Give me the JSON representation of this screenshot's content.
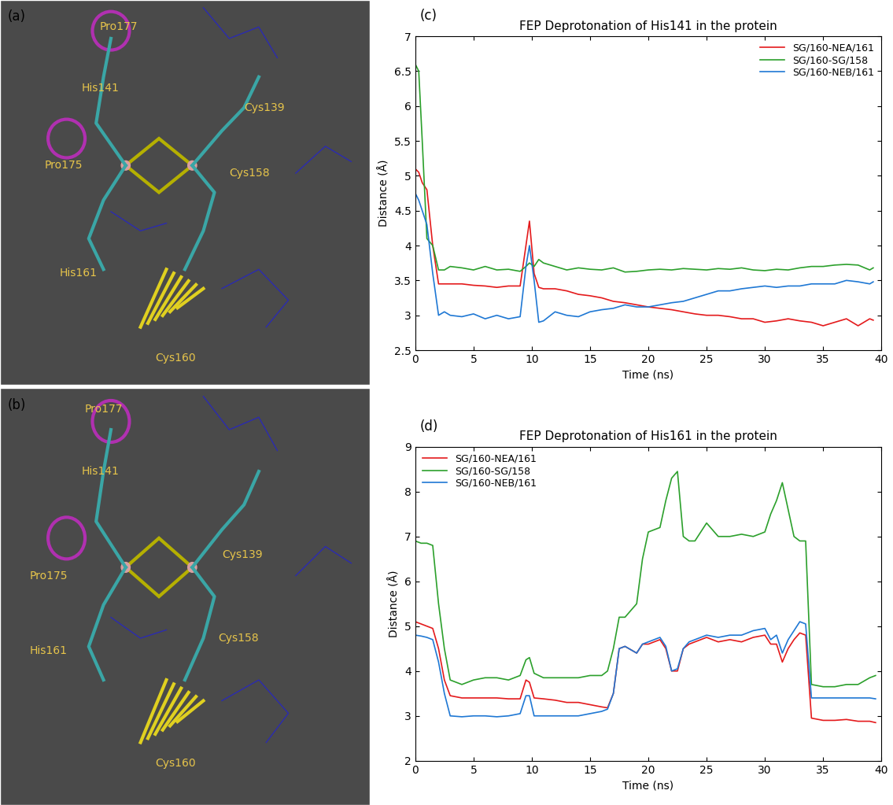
{
  "chart_data": [
    {
      "type": "line",
      "panel_label": "(c)",
      "title": "FEP Deprotonation of His141 in the protein",
      "x_label": "Time (ns)",
      "y_label": "Distance (Å)",
      "xlim": [
        0,
        40
      ],
      "xticks": [
        0,
        5,
        10,
        15,
        20,
        25,
        30,
        35,
        40
      ],
      "ylim": [
        2.5,
        7
      ],
      "yticks": [
        2.5,
        3,
        3.5,
        4,
        4.5,
        5,
        5.5,
        6,
        6.5,
        7
      ],
      "grid": false,
      "legend": "upper right",
      "x": [
        0,
        0.3,
        0.6,
        1,
        1.5,
        2,
        2.5,
        3,
        4,
        5,
        6,
        7,
        8,
        9,
        9.5,
        9.8,
        10.2,
        10.6,
        11,
        12,
        13,
        14,
        15,
        16,
        17,
        18,
        19,
        20,
        21,
        22,
        23,
        24,
        25,
        26,
        27,
        28,
        29,
        30,
        31,
        32,
        33,
        34,
        35,
        36,
        37,
        38,
        39,
        39.3
      ],
      "series": [
        {
          "name": "SG/160-NEA/161",
          "color": "#e41a1c",
          "values": [
            5.1,
            5.05,
            4.9,
            4.8,
            4.0,
            3.45,
            3.45,
            3.45,
            3.45,
            3.43,
            3.42,
            3.4,
            3.42,
            3.42,
            4.0,
            4.35,
            3.6,
            3.4,
            3.38,
            3.38,
            3.35,
            3.3,
            3.28,
            3.25,
            3.2,
            3.18,
            3.15,
            3.12,
            3.1,
            3.08,
            3.05,
            3.02,
            3.0,
            3.0,
            2.98,
            2.95,
            2.95,
            2.9,
            2.92,
            2.95,
            2.92,
            2.9,
            2.85,
            2.9,
            2.95,
            2.85,
            2.95,
            2.93
          ]
        },
        {
          "name": "SG/160-SG/158",
          "color": "#2ca02c",
          "values": [
            6.6,
            6.5,
            5.5,
            4.1,
            4.0,
            3.65,
            3.65,
            3.7,
            3.68,
            3.65,
            3.7,
            3.65,
            3.66,
            3.63,
            3.7,
            3.75,
            3.7,
            3.8,
            3.75,
            3.7,
            3.65,
            3.68,
            3.66,
            3.65,
            3.68,
            3.62,
            3.63,
            3.65,
            3.66,
            3.65,
            3.67,
            3.66,
            3.65,
            3.67,
            3.66,
            3.68,
            3.65,
            3.64,
            3.66,
            3.65,
            3.68,
            3.7,
            3.7,
            3.72,
            3.73,
            3.72,
            3.65,
            3.68
          ]
        },
        {
          "name": "SG/160-NEB/161",
          "color": "#1f78d4",
          "values": [
            4.75,
            4.65,
            4.5,
            4.3,
            3.6,
            3.0,
            3.05,
            3.0,
            2.98,
            3.02,
            2.95,
            3.0,
            2.95,
            2.98,
            3.7,
            4.0,
            3.5,
            2.9,
            2.92,
            3.05,
            3.0,
            2.98,
            3.05,
            3.08,
            3.1,
            3.15,
            3.12,
            3.12,
            3.15,
            3.18,
            3.2,
            3.25,
            3.3,
            3.35,
            3.35,
            3.38,
            3.4,
            3.42,
            3.4,
            3.42,
            3.42,
            3.45,
            3.45,
            3.45,
            3.5,
            3.48,
            3.45,
            3.48
          ]
        }
      ]
    },
    {
      "type": "line",
      "panel_label": "(d)",
      "title": "FEP Deprotonation of His161 in the protein",
      "x_label": "Time (ns)",
      "y_label": "Distance (Å)",
      "xlim": [
        0,
        40
      ],
      "xticks": [
        0,
        5,
        10,
        15,
        20,
        25,
        30,
        35,
        40
      ],
      "ylim": [
        2,
        9
      ],
      "yticks": [
        2,
        3,
        4,
        5,
        6,
        7,
        8,
        9
      ],
      "grid": false,
      "legend": "upper left",
      "x": [
        0,
        0.5,
        1,
        1.5,
        2,
        2.5,
        3,
        4,
        5,
        6,
        7,
        8,
        9,
        9.5,
        9.8,
        10.2,
        11,
        12,
        13,
        14,
        15,
        16,
        16.5,
        17,
        17.5,
        18,
        19,
        19.5,
        20,
        21,
        21.5,
        22,
        22.5,
        23,
        23.5,
        24,
        25,
        26,
        27,
        28,
        29,
        30,
        30.5,
        31,
        31.5,
        32,
        32.5,
        33,
        33.5,
        34,
        35,
        36,
        37,
        38,
        39,
        39.5
      ],
      "series": [
        {
          "name": "SG/160-NEA/161",
          "color": "#e41a1c",
          "values": [
            5.1,
            5.05,
            5.0,
            4.95,
            4.5,
            3.8,
            3.45,
            3.4,
            3.4,
            3.4,
            3.4,
            3.38,
            3.38,
            3.8,
            3.75,
            3.4,
            3.38,
            3.35,
            3.3,
            3.3,
            3.25,
            3.2,
            3.18,
            3.5,
            4.5,
            4.55,
            4.4,
            4.6,
            4.6,
            4.7,
            4.5,
            4.0,
            4.0,
            4.5,
            4.6,
            4.65,
            4.75,
            4.65,
            4.7,
            4.65,
            4.75,
            4.8,
            4.6,
            4.6,
            4.2,
            4.5,
            4.7,
            4.85,
            4.8,
            2.95,
            2.9,
            2.9,
            2.92,
            2.88,
            2.88,
            2.85
          ]
        },
        {
          "name": "SG/160-SG/158",
          "color": "#2ca02c",
          "values": [
            6.9,
            6.85,
            6.85,
            6.8,
            5.5,
            4.5,
            3.8,
            3.7,
            3.8,
            3.85,
            3.85,
            3.8,
            3.9,
            4.25,
            4.3,
            3.95,
            3.85,
            3.85,
            3.85,
            3.85,
            3.9,
            3.9,
            4.0,
            4.5,
            5.2,
            5.2,
            5.5,
            6.5,
            7.1,
            7.2,
            7.8,
            8.3,
            8.45,
            7.0,
            6.9,
            6.9,
            7.3,
            7.0,
            7.0,
            7.05,
            7.0,
            7.1,
            7.5,
            7.8,
            8.2,
            7.6,
            7.0,
            6.9,
            6.9,
            3.7,
            3.65,
            3.65,
            3.7,
            3.7,
            3.85,
            3.9
          ]
        },
        {
          "name": "SG/160-NEB/161",
          "color": "#1f78d4",
          "values": [
            4.8,
            4.78,
            4.75,
            4.7,
            4.2,
            3.5,
            3.0,
            2.98,
            3.0,
            3.0,
            2.98,
            3.0,
            3.05,
            3.45,
            3.45,
            3.0,
            3.0,
            3.0,
            3.0,
            3.0,
            3.05,
            3.1,
            3.15,
            3.5,
            4.5,
            4.55,
            4.4,
            4.6,
            4.65,
            4.75,
            4.55,
            4.0,
            4.05,
            4.5,
            4.65,
            4.7,
            4.8,
            4.75,
            4.8,
            4.8,
            4.9,
            4.95,
            4.7,
            4.8,
            4.4,
            4.7,
            4.9,
            5.1,
            5.05,
            3.4,
            3.4,
            3.4,
            3.4,
            3.4,
            3.4,
            3.38
          ]
        }
      ]
    }
  ],
  "structure_images": [
    {
      "panel_label": "(a)",
      "labels": [
        "Pro177",
        "His141",
        "Cys139",
        "Cys158",
        "Pro175",
        "His161",
        "Cys160"
      ]
    },
    {
      "panel_label": "(b)",
      "labels": [
        "Pro177",
        "His141",
        "Cys139",
        "Cys158",
        "Pro175",
        "His161",
        "Cys160"
      ]
    }
  ]
}
